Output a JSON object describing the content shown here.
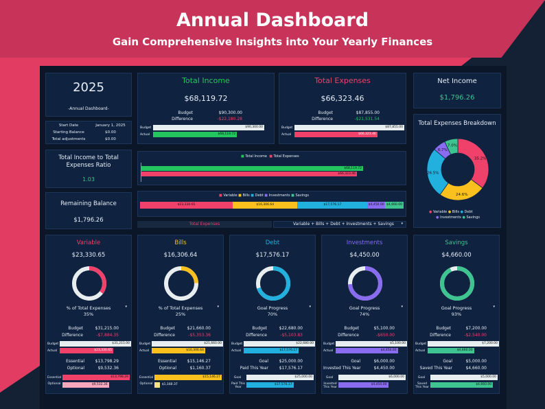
{
  "header": {
    "title": "Annual Dashboard",
    "subtitle": "Gain Comprehensive Insights into Your Yearly Finances"
  },
  "year_box": {
    "year": "2025",
    "caption": "-Annual Dashboard-",
    "rows": [
      {
        "label": "Start Date",
        "value": "January 1, 2025"
      },
      {
        "label": "Starting Balance",
        "value": "$0.00"
      },
      {
        "label": "Total adjustments",
        "value": "$0.00"
      }
    ]
  },
  "ratio": {
    "title": "Total Income to Total Expenses Ratio",
    "value": "1.03"
  },
  "remaining": {
    "title": "Remaining Balance",
    "value": "$1,796.26"
  },
  "income": {
    "title": "Total Income",
    "value": "$68,119.72",
    "budget_label": "Budget",
    "budget": "$90,300.00",
    "diff_label": "Difference",
    "diff": "-$22,180.28",
    "bar_budget_label": "Budget",
    "bar_budget": "$90,300.00",
    "bar_actual_label": "Actual",
    "bar_actual": "$68,119.72",
    "actual_frac": 0.754
  },
  "expenses": {
    "title": "Total Expenses",
    "value": "$66,323.46",
    "budget_label": "Budget",
    "budget": "$87,855.00",
    "diff_label": "Difference",
    "diff": "-$21,531.54",
    "bar_budget_label": "Budget",
    "bar_budget": "$87,855.00",
    "bar_actual_label": "Actual",
    "bar_actual": "$66,323.46",
    "actual_frac": 0.755
  },
  "net": {
    "title": "Net Income",
    "value": "$1,796.26"
  },
  "compare": {
    "legend": [
      "Total Income",
      "Total Expenses"
    ],
    "income": "$68,119.72",
    "expenses": "$66,323.46"
  },
  "stack": {
    "legend": [
      "Variable",
      "Bills",
      "Debt",
      "Investments",
      "Savings"
    ],
    "values": [
      "$23,330.65",
      "$16,306.64",
      "$17,576.17",
      "$4,450.00",
      "$4,660.00"
    ],
    "dropdown_left": "Total Expenses",
    "dropdown_right": "Variable + Bills + Debt + Investments + Savings"
  },
  "breakdown": {
    "title": "Total Expenses Breakdown",
    "slices": [
      {
        "name": "Variable",
        "pct": "35.2%",
        "frac": 0.352,
        "color": "#f0416b"
      },
      {
        "name": "Bills",
        "pct": "24.6%",
        "frac": 0.246,
        "color": "#f9c01e"
      },
      {
        "name": "Debt",
        "pct": "26.5%",
        "frac": 0.265,
        "color": "#22b0de"
      },
      {
        "name": "Investments",
        "pct": "6.7%",
        "frac": 0.067,
        "color": "#8a6cf0"
      },
      {
        "name": "Savings",
        "pct": "7.0%",
        "frac": 0.07,
        "color": "#3ec491"
      }
    ]
  },
  "categories": [
    {
      "name": "Variable",
      "color": "#f0416b",
      "total": "$23,330.65",
      "ring_label": "% of Total Expenses",
      "ring_value": "35%",
      "ring_frac": 0.352,
      "budget": "$31,215.00",
      "diff": "-$7,884.35",
      "bar_budget": "$31,215.00",
      "bar_actual": "$23,330.65",
      "actual_frac": 0.75,
      "r1_label": "Essential",
      "r1_value": "$13,798.29",
      "r2_label": "Optional",
      "r2_value": "$9,532.36",
      "b1_label": "Essential",
      "b1_value": "$13,798.29",
      "b1_frac": 1.0,
      "b2_label": "Optional",
      "b2_value": "$9,532.36",
      "b2_frac": 0.69,
      "b2_color": "#f7a8bd"
    },
    {
      "name": "Bills",
      "color": "#f9c01e",
      "total": "$16,306.64",
      "ring_label": "% of Total Expenses",
      "ring_value": "25%",
      "ring_frac": 0.246,
      "budget": "$21,660.00",
      "diff": "-$5,353.36",
      "bar_budget": "$21,660.00",
      "bar_actual": "$16,306.64",
      "actual_frac": 0.75,
      "r1_label": "Essential",
      "r1_value": "$15,146.27",
      "r2_label": "Optional",
      "r2_value": "$1,160.37",
      "b1_label": "Essential",
      "b1_value": "$15,146.27",
      "b1_frac": 1.0,
      "b2_label": "Optional",
      "b2_value": "$1,160.37",
      "b2_frac": 0.08,
      "b2_color": "#fbe08a"
    },
    {
      "name": "Debt",
      "color": "#22b0de",
      "total": "$17,576.17",
      "ring_label": "Goal Progress",
      "ring_value": "70%",
      "ring_frac": 0.7,
      "budget": "$22,680.00",
      "diff": "-$5,103.83",
      "bar_budget": "$22,680.00",
      "bar_actual": "$17,576.17",
      "actual_frac": 0.77,
      "r1_label": "Goal",
      "r1_value": "$25,000.00",
      "r2_label": "Paid This Year",
      "r2_value": "$17,576.17",
      "b1_label": "Goal",
      "b1_value": "$25,000.00",
      "b1_frac": 1.0,
      "b2_label": "Paid This Year",
      "b2_value": "$17,576.17",
      "b2_frac": 0.7,
      "b2_color": "#22b0de"
    },
    {
      "name": "Investments",
      "color": "#8a6cf0",
      "total": "$4,450.00",
      "ring_label": "Goal Progress",
      "ring_value": "74%",
      "ring_frac": 0.74,
      "budget": "$5,100.00",
      "diff": "-$650.00",
      "bar_budget": "$5,100.00",
      "bar_actual": "$4,450.00",
      "actual_frac": 0.87,
      "r1_label": "Goal",
      "r1_value": "$6,000.00",
      "r2_label": "Invested This Year",
      "r2_value": "$4,450.00",
      "b1_label": "Goal",
      "b1_value": "$6,000.00",
      "b1_frac": 1.0,
      "b2_label": "Invested This Year",
      "b2_value": "$4,450.00",
      "b2_frac": 0.74,
      "b2_color": "#8a6cf0"
    },
    {
      "name": "Savings",
      "color": "#3ec491",
      "total": "$4,660.00",
      "ring_label": "Goal Progress",
      "ring_value": "93%",
      "ring_frac": 0.93,
      "budget": "$7,200.00",
      "diff": "-$2,540.00",
      "bar_budget": "$7,200.00",
      "bar_actual": "$4,660.00",
      "actual_frac": 0.65,
      "r1_label": "Goal",
      "r1_value": "$5,000.00",
      "r2_label": "Saved This Year",
      "r2_value": "$4,660.00",
      "b1_label": "Goal",
      "b1_value": "$5,000.00",
      "b1_frac": 1.0,
      "b2_label": "Saved This Year",
      "b2_value": "$4,660.00",
      "b2_frac": 0.93,
      "b2_color": "#3ec491"
    }
  ],
  "labels": {
    "budget": "Budget",
    "difference": "Difference",
    "actual": "Actual"
  },
  "colors": {
    "income": "#22c55e",
    "expenses": "#f0416b",
    "navy": "#0f2340",
    "diff_neg": "#f0416b"
  }
}
